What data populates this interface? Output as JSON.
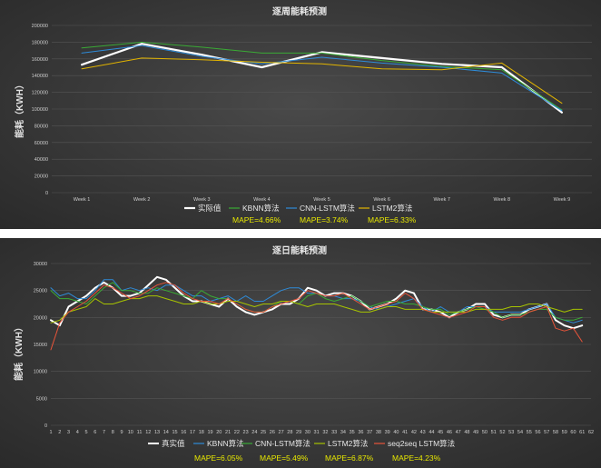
{
  "chart_data": [
    {
      "type": "line",
      "title": "逐周能耗预测",
      "ylabel": "能耗（KWH）",
      "ylim": [
        0,
        200000
      ],
      "yticks": [
        0,
        20000,
        40000,
        60000,
        80000,
        100000,
        120000,
        140000,
        160000,
        180000,
        200000
      ],
      "categories": [
        "Week 1",
        "Week 2",
        "Week 3",
        "Week 4",
        "Week 5",
        "Week 6",
        "Week 7",
        "Week 8",
        "Week 9"
      ],
      "series": [
        {
          "name": "实际值",
          "color": "#ffffff",
          "width": 2.2,
          "values": [
            153000,
            178000,
            165000,
            150000,
            168000,
            161000,
            154000,
            150000,
            96000
          ]
        },
        {
          "name": "KBNN算法",
          "color": "#3aaa35",
          "width": 1,
          "values": [
            173000,
            180000,
            174000,
            167000,
            167000,
            158000,
            151000,
            147000,
            99000
          ]
        },
        {
          "name": "CNN-LSTM算法",
          "color": "#2e8bd8",
          "width": 1,
          "values": [
            167000,
            176000,
            163000,
            154000,
            162000,
            155000,
            150000,
            143000,
            98000
          ]
        },
        {
          "name": "LSTM2算法",
          "color": "#e2b400",
          "width": 1,
          "values": [
            148000,
            161000,
            159000,
            156000,
            154000,
            148000,
            147000,
            155000,
            107000
          ]
        }
      ],
      "legend_position": "bottom",
      "mape_labels": [
        "MAPE=4.66%",
        "MAPE=3.74%",
        "MAPE=6.33%"
      ]
    },
    {
      "type": "line",
      "title": "逐日能耗预测",
      "ylabel": "能耗（KWH）",
      "ylim": [
        0,
        30000
      ],
      "yticks": [
        0,
        5000,
        10000,
        15000,
        20000,
        25000,
        30000
      ],
      "categories": [
        "1",
        "2",
        "3",
        "4",
        "5",
        "6",
        "7",
        "8",
        "9",
        "10",
        "11",
        "12",
        "13",
        "14",
        "15",
        "16",
        "17",
        "18",
        "19",
        "20",
        "21",
        "22",
        "23",
        "24",
        "25",
        "26",
        "27",
        "28",
        "29",
        "30",
        "31",
        "32",
        "33",
        "34",
        "35",
        "36",
        "37",
        "38",
        "39",
        "40",
        "41",
        "42",
        "43",
        "44",
        "45",
        "46",
        "47",
        "48",
        "49",
        "50",
        "51",
        "52",
        "53",
        "54",
        "55",
        "56",
        "57",
        "58",
        "59",
        "60",
        "61",
        "62"
      ],
      "series": [
        {
          "name": "真实值",
          "color": "#ffffff",
          "width": 2,
          "values": [
            19500,
            18500,
            22000,
            23000,
            24000,
            25500,
            26500,
            25500,
            24000,
            24000,
            24500,
            26000,
            27500,
            27000,
            25500,
            24000,
            23000,
            23000,
            22500,
            22000,
            23500,
            22000,
            21000,
            20500,
            21000,
            21500,
            22500,
            22500,
            23500,
            25500,
            25000,
            24000,
            24500,
            24500,
            24000,
            23000,
            21500,
            22000,
            22500,
            23500,
            25000,
            24500,
            21500,
            21500,
            21000,
            20000,
            21000,
            21500,
            22500,
            22500,
            20500,
            20000,
            20500,
            20500,
            21500,
            22000,
            22500,
            19500,
            18500,
            18000,
            18500,
            null
          ]
        },
        {
          "name": "KBNN算法",
          "color": "#2e8bd8",
          "width": 1,
          "values": [
            25500,
            24000,
            24500,
            23500,
            23500,
            25000,
            27000,
            27000,
            25000,
            25500,
            25000,
            25500,
            25000,
            26000,
            26000,
            25000,
            24000,
            24000,
            23000,
            23500,
            24000,
            23000,
            24000,
            23000,
            23000,
            24000,
            25000,
            25500,
            25500,
            24500,
            24500,
            24000,
            24000,
            23500,
            23500,
            23000,
            22000,
            21500,
            22000,
            22500,
            23000,
            23500,
            22000,
            21000,
            22000,
            21000,
            21000,
            22000,
            22000,
            22000,
            21000,
            21000,
            21000,
            21000,
            21500,
            22000,
            22500,
            20000,
            19500,
            19000,
            19500,
            null
          ]
        },
        {
          "name": "CNN-LSTM算法",
          "color": "#3aaa35",
          "width": 1,
          "values": [
            25000,
            23500,
            23500,
            23000,
            22500,
            24000,
            25500,
            26500,
            25000,
            25000,
            24500,
            24500,
            25500,
            25000,
            24500,
            24000,
            23500,
            25000,
            24000,
            23500,
            23500,
            22500,
            21500,
            21000,
            21000,
            22000,
            23000,
            23000,
            22500,
            24000,
            24500,
            23500,
            23000,
            23500,
            24000,
            23000,
            22000,
            22500,
            23000,
            23000,
            22500,
            22500,
            22000,
            21500,
            21500,
            20500,
            21000,
            21500,
            22000,
            21500,
            21000,
            20000,
            20500,
            20500,
            21000,
            21500,
            21500,
            20000,
            19500,
            19500,
            20000,
            null
          ]
        },
        {
          "name": "LSTM2算法",
          "color": "#a7c300",
          "width": 1,
          "values": [
            19000,
            19500,
            21000,
            21500,
            22000,
            23500,
            22500,
            22500,
            23000,
            23500,
            23500,
            24000,
            24000,
            23500,
            23000,
            22500,
            22500,
            23000,
            22500,
            22500,
            23000,
            23000,
            22500,
            22000,
            22500,
            22500,
            23000,
            23000,
            22500,
            22000,
            22500,
            22500,
            22500,
            22000,
            21500,
            21000,
            21000,
            21500,
            22000,
            22000,
            21500,
            21500,
            21500,
            21000,
            21000,
            21000,
            21000,
            21000,
            21500,
            21500,
            21500,
            21500,
            22000,
            22000,
            22500,
            22500,
            22000,
            21500,
            21000,
            21500,
            21500,
            null
          ]
        },
        {
          "name": "seq2seq LSTM算法",
          "color": "#e8543a",
          "width": 1,
          "values": [
            14000,
            19000,
            21000,
            22000,
            23000,
            24500,
            26000,
            25500,
            24500,
            23500,
            24000,
            25000,
            26000,
            26500,
            26000,
            24500,
            23500,
            23000,
            23000,
            22500,
            23500,
            22500,
            21500,
            21000,
            21000,
            22000,
            22500,
            23000,
            23500,
            25000,
            24500,
            24000,
            24000,
            24500,
            23500,
            22500,
            21500,
            22000,
            22500,
            23000,
            24500,
            23500,
            21500,
            21000,
            20500,
            20000,
            20500,
            21000,
            22000,
            22000,
            20000,
            19500,
            20000,
            20000,
            21000,
            21500,
            22000,
            18000,
            17500,
            18000,
            15500,
            null
          ]
        }
      ],
      "legend_position": "bottom",
      "mape_labels": [
        "MAPE=6.05%",
        "MAPE=5.49%",
        "MAPE=6.87%",
        "MAPE=4.23%"
      ]
    }
  ]
}
